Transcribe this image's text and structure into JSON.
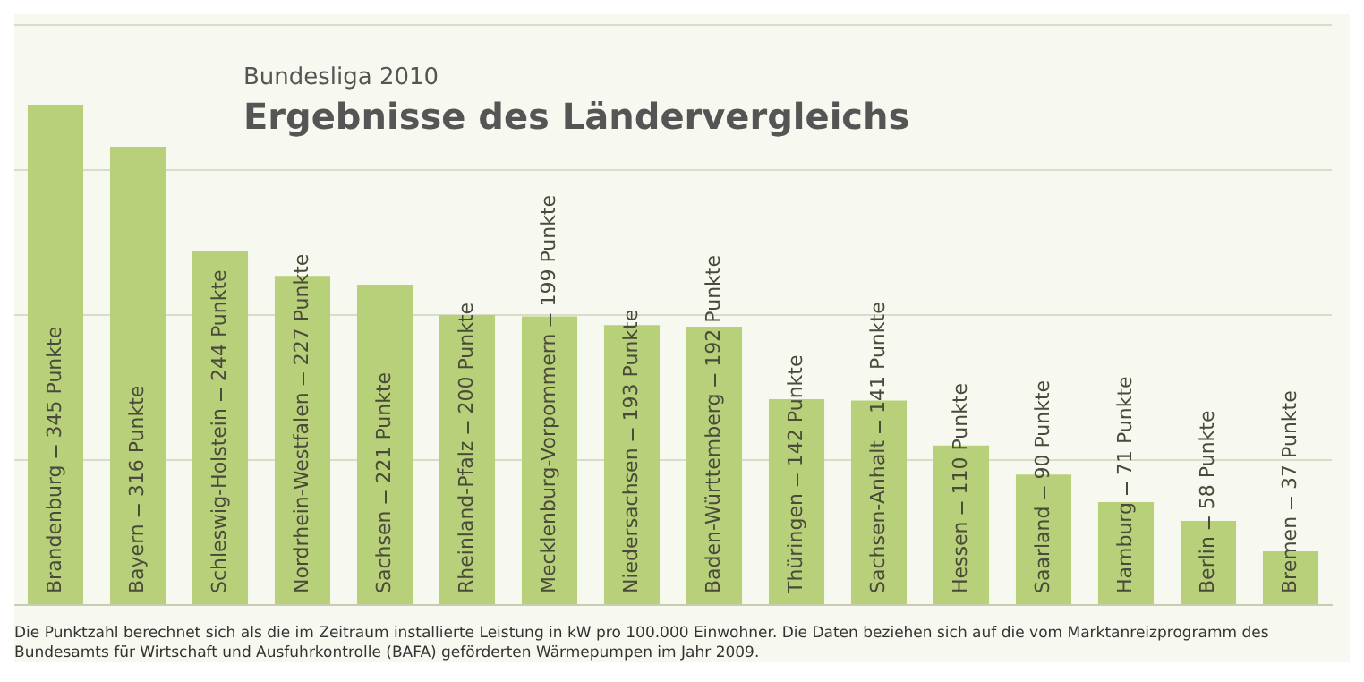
{
  "chart_data": {
    "type": "bar",
    "title": "Ergebnisse des Ländervergleichs",
    "subtitle": "Bundesliga 2010",
    "categories": [
      "Brandenburg",
      "Bayern",
      "Schleswig-Holstein",
      "Nordrhein-Westfalen",
      "Sachsen",
      "Rheinland-Pfalz",
      "Mecklenburg-Vorpommern",
      "Niedersachsen",
      "Baden-Württemberg",
      "Thüringen",
      "Sachsen-Anhalt",
      "Hessen",
      "Saarland",
      "Hamburg",
      "Berlin",
      "Bremen"
    ],
    "values": [
      345,
      316,
      244,
      227,
      221,
      200,
      199,
      193,
      192,
      142,
      141,
      110,
      90,
      71,
      58,
      37
    ],
    "value_labels": [
      "345 Punkte",
      "316 Punkte",
      "244 Punkte",
      "227 Punkte",
      "221 Punkte",
      "200 Punkte",
      "199 Punkte",
      "193 Punkte",
      "192 Punkte",
      "142 Punkte",
      "141 Punkte",
      "110 Punkte",
      "90 Punkte",
      "71 Punkte",
      "58 Punkte",
      "37 Punkte"
    ],
    "color": "#b8d07a",
    "grid": "y",
    "tick_labels": false,
    "legend": false,
    "annotations": [
      "Die Punktzahl berechnet sich als die im Zeitraum installierte Leistung in kW pro 100.000 Einwohner. Die Daten beziehen sich auf die vom Marktanreizprogramm des Bundesamts für Wirtschaft und Ausfuhrkontrolle (BAFA) geförderten Wärmepumpen im Jahr 2009."
    ]
  }
}
